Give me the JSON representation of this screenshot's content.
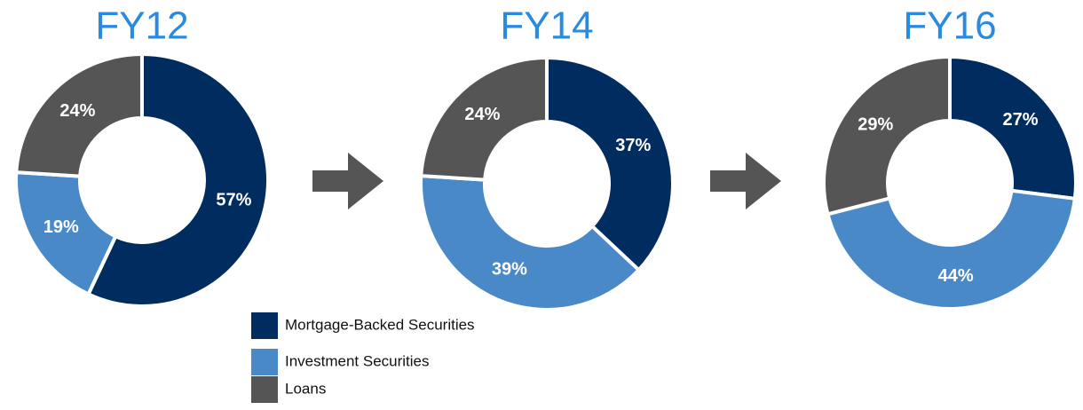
{
  "legend": {
    "labels": [
      "Mortgage-Backed Securities",
      "Investment Securities",
      "Loans"
    ],
    "colors": [
      "#002c5f",
      "#4a89c8",
      "#555555"
    ]
  },
  "chart_data": [
    {
      "type": "donut",
      "title": "FY12",
      "values": [
        57,
        19,
        24
      ],
      "value_labels": [
        "57%",
        "19%",
        "24%"
      ]
    },
    {
      "type": "donut",
      "title": "FY14",
      "values": [
        37,
        39,
        24
      ],
      "value_labels": [
        "37%",
        "39%",
        "24%"
      ]
    },
    {
      "type": "donut",
      "title": "FY16",
      "values": [
        27,
        44,
        29
      ],
      "value_labels": [
        "27%",
        "44%",
        "29%"
      ]
    }
  ]
}
